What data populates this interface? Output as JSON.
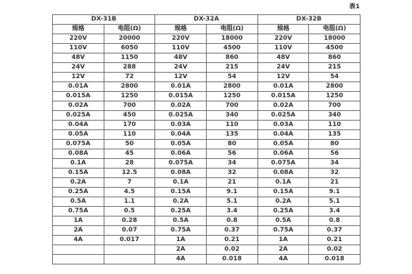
{
  "page": {
    "caption": "表1"
  },
  "table": {
    "groups": [
      {
        "name": "DX-31B"
      },
      {
        "name": "DX-32A"
      },
      {
        "name": "DX-32B"
      }
    ],
    "col_headers": {
      "spec": "规格",
      "resistance": "电阻(Ω)"
    },
    "rows": [
      [
        "220V",
        "20000",
        "220V",
        "18000",
        "220V",
        "18000"
      ],
      [
        "110V",
        "6050",
        "110V",
        "4500",
        "110V",
        "4500"
      ],
      [
        "48V",
        "1150",
        "48V",
        "860",
        "48V",
        "860"
      ],
      [
        "24V",
        "288",
        "24V",
        "215",
        "24V",
        "215"
      ],
      [
        "12V",
        "72",
        "12V",
        "54",
        "12V",
        "54"
      ],
      [
        "0.01A",
        "2800",
        "0.01A",
        "2800",
        "0.01A",
        "2800"
      ],
      [
        "0.015A",
        "1250",
        "0.015A",
        "1250",
        "0.015A",
        "1250"
      ],
      [
        "0.02A",
        "700",
        "0.02A",
        "700",
        "0.02A",
        "700"
      ],
      [
        "0.025A",
        "450",
        "0.025A",
        "340",
        "0.025A",
        "340"
      ],
      [
        "0.04A",
        "170",
        "0.03A",
        "110",
        "0.03A",
        "110"
      ],
      [
        "0.05A",
        "110",
        "0.04A",
        "135",
        "0.04A",
        "135"
      ],
      [
        "0.075A",
        "50",
        "0.05A",
        "80",
        "0.05A",
        "80"
      ],
      [
        "0.08A",
        "45",
        "0.06A",
        "56",
        "0.06A",
        "56"
      ],
      [
        "0.1A",
        "28",
        "0.075A",
        "34",
        "0.075A",
        "34"
      ],
      [
        "0.15A",
        "12.5",
        "0.08A",
        "32",
        "0.08A",
        "32"
      ],
      [
        "0.2A",
        "7",
        "0.1A",
        "21",
        "0.1A",
        "21"
      ],
      [
        "0.25A",
        "4.5",
        "0.15A",
        "9.1",
        "0.15A",
        "9.1"
      ],
      [
        "0.5A",
        "1.1",
        "0.2A",
        "5.1",
        "0.2A",
        "5.1"
      ],
      [
        "0.75A",
        "0.5",
        "0.25A",
        "3.4",
        "0.25A",
        "3.4"
      ],
      [
        "1A",
        "0.28",
        "0.5A",
        "0.8",
        "0.5A",
        "0.8"
      ],
      [
        "2A",
        "0.07",
        "0.75A",
        "0.37",
        "0.75A",
        "0.37"
      ],
      [
        "4A",
        "0.017",
        "1A",
        "0.21",
        "1A",
        "0.21"
      ],
      [
        "",
        "",
        "2A",
        "0.02",
        "2A",
        "0.02"
      ],
      [
        "",
        "",
        "4A",
        "0.018",
        "4A",
        "0.018"
      ]
    ]
  }
}
